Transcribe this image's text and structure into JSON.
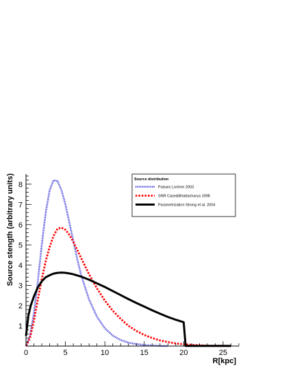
{
  "chart_data": {
    "type": "line",
    "xlabel": "R[kpc]",
    "ylabel": "Source stength (arbitrary units)",
    "xlim": [
      0,
      27
    ],
    "ylim": [
      0,
      8.5
    ],
    "x_ticks": [
      0,
      5,
      10,
      15,
      20,
      25
    ],
    "y_ticks": [
      1,
      2,
      3,
      4,
      5,
      6,
      7,
      8
    ],
    "grid": false,
    "legend": {
      "title": "Source distribution",
      "placement": "top-right"
    },
    "series": [
      {
        "name": "Pulsars Lorimer 2003",
        "color": "#3a3ad8",
        "style": "dotted",
        "x": [
          0,
          0.5,
          1,
          1.5,
          2,
          2.5,
          3,
          3.5,
          4,
          4.5,
          5,
          5.5,
          6,
          6.5,
          7,
          8,
          9,
          10,
          11,
          12,
          13,
          14,
          15,
          16,
          17,
          18
        ],
        "y": [
          0,
          0.5,
          1.6,
          3.2,
          5.0,
          6.6,
          7.7,
          8.2,
          8.15,
          7.7,
          7.0,
          6.1,
          5.2,
          4.3,
          3.5,
          2.3,
          1.45,
          0.88,
          0.52,
          0.3,
          0.17,
          0.1,
          0.05,
          0.03,
          0.01,
          0
        ]
      },
      {
        "name": "SNR Case&Bhattacharya 1998",
        "color": "#ff0000",
        "style": "dotted",
        "x": [
          0,
          0.5,
          1,
          1.5,
          2,
          2.5,
          3,
          3.5,
          4,
          4.5,
          5,
          5.5,
          6,
          6.5,
          7,
          8,
          9,
          10,
          11,
          12,
          13,
          14,
          15,
          16,
          17,
          18,
          19,
          20,
          21,
          22,
          23,
          24,
          25,
          26
        ],
        "y": [
          0,
          0.4,
          1.25,
          2.3,
          3.3,
          4.2,
          4.9,
          5.45,
          5.8,
          5.85,
          5.75,
          5.5,
          5.15,
          4.75,
          4.35,
          3.55,
          2.85,
          2.25,
          1.75,
          1.35,
          1.0,
          0.75,
          0.55,
          0.4,
          0.28,
          0.2,
          0.13,
          0.09,
          0.06,
          0.04,
          0.02,
          0.01,
          0.01,
          0
        ]
      },
      {
        "name": "Parametrization Strong et al. 2004",
        "color": "#000000",
        "style": "solid",
        "x": [
          0,
          0.3,
          0.6,
          1,
          1.5,
          2,
          2.5,
          3,
          3.5,
          4,
          4.5,
          5,
          5.5,
          6,
          7,
          8,
          9,
          10,
          11,
          12,
          13,
          14,
          15,
          16,
          17,
          18,
          19,
          20,
          20.25,
          26
        ],
        "y": [
          0.5,
          1.5,
          2.0,
          2.45,
          2.9,
          3.2,
          3.4,
          3.5,
          3.58,
          3.62,
          3.63,
          3.62,
          3.59,
          3.55,
          3.43,
          3.28,
          3.1,
          2.92,
          2.72,
          2.52,
          2.32,
          2.13,
          1.95,
          1.77,
          1.6,
          1.44,
          1.3,
          1.18,
          0.01,
          0.01
        ]
      }
    ]
  }
}
